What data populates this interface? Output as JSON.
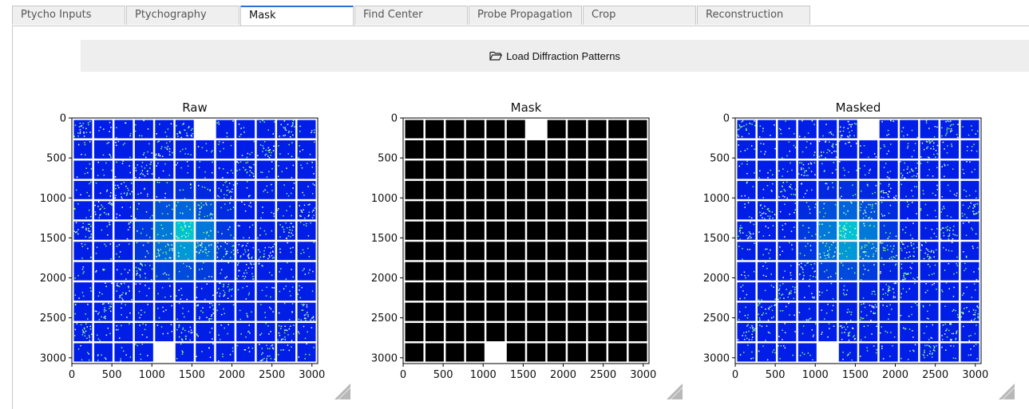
{
  "tabs": [
    {
      "label": "Ptycho Inputs",
      "active": false
    },
    {
      "label": "Ptychography",
      "active": false
    },
    {
      "label": "Mask",
      "active": true
    },
    {
      "label": "Find Center",
      "active": false
    },
    {
      "label": "Probe Propagation",
      "active": false
    },
    {
      "label": "Crop",
      "active": false
    },
    {
      "label": "Reconstruction",
      "active": false
    }
  ],
  "load_button": {
    "label": "Load Diffraction Patterns",
    "icon": "folder-open-icon"
  },
  "chart_data": [
    {
      "type": "heatmap",
      "title": "Raw",
      "colormap": "jet",
      "xlim": [
        0,
        3072
      ],
      "ylim": [
        3072,
        0
      ],
      "xticks": [
        "0",
        "500",
        "1000",
        "1500",
        "2000",
        "2500",
        "3000"
      ],
      "yticks": [
        "0",
        "500",
        "1000",
        "1500",
        "2000",
        "2500",
        "3000"
      ]
    },
    {
      "type": "heatmap",
      "title": "Mask",
      "colormap": "gray",
      "xlim": [
        0,
        3072
      ],
      "ylim": [
        3072,
        0
      ],
      "xticks": [
        "0",
        "500",
        "1000",
        "1500",
        "2000",
        "2500",
        "3000"
      ],
      "yticks": [
        "0",
        "500",
        "1000",
        "1500",
        "2000",
        "2500",
        "3000"
      ]
    },
    {
      "type": "heatmap",
      "title": "Masked",
      "colormap": "jet",
      "xlim": [
        0,
        3072
      ],
      "ylim": [
        3072,
        0
      ],
      "xticks": [
        "0",
        "500",
        "1000",
        "1500",
        "2000",
        "2500",
        "3000"
      ],
      "yticks": [
        "0",
        "500",
        "1000",
        "1500",
        "2000",
        "2500",
        "3000"
      ]
    }
  ]
}
